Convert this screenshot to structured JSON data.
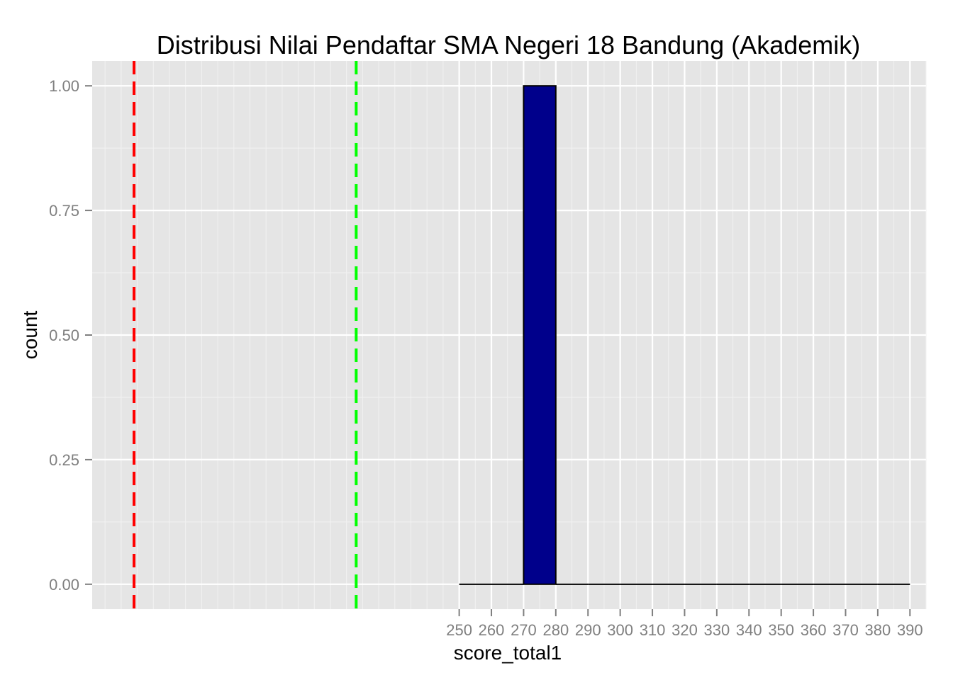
{
  "chart_data": {
    "type": "bar",
    "title": "Distribusi Nilai Pendaftar SMA Negeri 18 Bandung (Akademik)",
    "xlabel": "score_total1",
    "ylabel": "count",
    "xlim": [
      136,
      395
    ],
    "ylim": [
      -0.05,
      1.05
    ],
    "x_ticks": [
      250,
      260,
      270,
      280,
      290,
      300,
      310,
      320,
      330,
      340,
      350,
      360,
      370,
      380,
      390
    ],
    "y_ticks": [
      0.0,
      0.25,
      0.5,
      0.75,
      1.0
    ],
    "y_tick_labels": [
      "0.00",
      "0.25",
      "0.50",
      "0.75",
      "1.00"
    ],
    "bins": [
      {
        "x0": 250,
        "x1": 260,
        "count": 0
      },
      {
        "x0": 260,
        "x1": 270,
        "count": 0
      },
      {
        "x0": 270,
        "x1": 280,
        "count": 1
      },
      {
        "x0": 280,
        "x1": 290,
        "count": 0
      },
      {
        "x0": 290,
        "x1": 300,
        "count": 0
      },
      {
        "x0": 300,
        "x1": 310,
        "count": 0
      },
      {
        "x0": 310,
        "x1": 320,
        "count": 0
      },
      {
        "x0": 320,
        "x1": 330,
        "count": 0
      },
      {
        "x0": 330,
        "x1": 340,
        "count": 0
      },
      {
        "x0": 340,
        "x1": 350,
        "count": 0
      },
      {
        "x0": 350,
        "x1": 360,
        "count": 0
      },
      {
        "x0": 360,
        "x1": 370,
        "count": 0
      },
      {
        "x0": 370,
        "x1": 380,
        "count": 0
      },
      {
        "x0": 380,
        "x1": 390,
        "count": 0
      }
    ],
    "reference_lines": [
      {
        "x": 149,
        "color": "#ff0000",
        "style": "dashed"
      },
      {
        "x": 218,
        "color": "#00ff00",
        "style": "dashed"
      }
    ],
    "bar_fill": "#00008b",
    "bar_outline": "#000000",
    "panel_background": "#e5e5e5",
    "grid": true,
    "legend": "none"
  }
}
